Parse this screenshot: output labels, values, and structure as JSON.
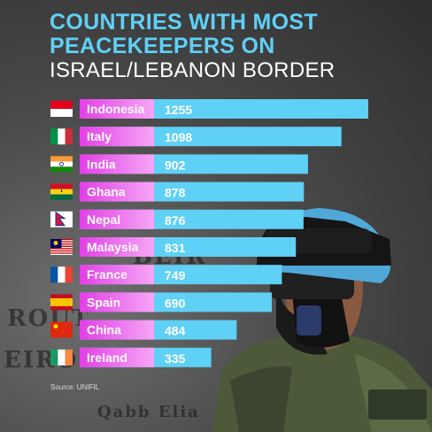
{
  "title": {
    "line1": "COUNTRIES WITH MOST",
    "line2": "PEACEKEEPERS ON",
    "line3": "ISRAEL/LEBANON BORDER"
  },
  "source": "Source: UNIFIL",
  "colors": {
    "title_accent": "#5fd0f6",
    "bar": "#5fd0f6",
    "label_bg": "#e040e8"
  },
  "chart_data": {
    "type": "bar",
    "orientation": "horizontal",
    "categories": [
      "Indonesia",
      "Italy",
      "India",
      "Ghana",
      "Nepal",
      "Malaysia",
      "France",
      "Spain",
      "China",
      "Ireland"
    ],
    "values": [
      1255,
      1098,
      902,
      878,
      876,
      831,
      749,
      690,
      484,
      335
    ],
    "data_labels": [
      "1255",
      "1098",
      "902",
      "878",
      "876",
      "831",
      "749",
      "690",
      "484",
      "335"
    ],
    "flags": [
      "indonesia-flag",
      "italy-flag",
      "india-flag",
      "ghana-flag",
      "nepal-flag",
      "malaysia-flag",
      "france-flag",
      "spain-flag",
      "china-flag",
      "ireland-flag"
    ],
    "xlim": [
      0,
      1255
    ],
    "title": "COUNTRIES WITH MOST PEACEKEEPERS ON ISRAEL/LEBANON BORDER",
    "xlabel": "",
    "ylabel": ""
  }
}
